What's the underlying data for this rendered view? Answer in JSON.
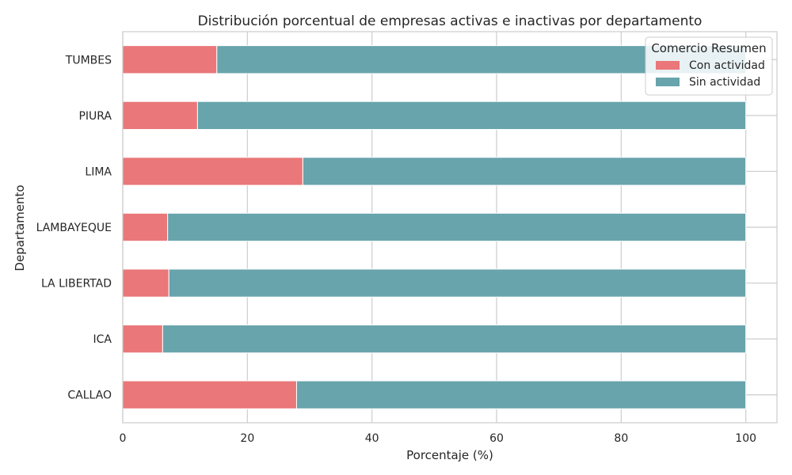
{
  "chart_data": {
    "type": "bar",
    "orientation": "horizontal",
    "stacked": true,
    "title": "Distribución porcentual de empresas activas e inactivas por departamento",
    "xlabel": "Porcentaje (%)",
    "ylabel": "Departamento",
    "xlim": [
      0,
      105
    ],
    "xticks": [
      0,
      20,
      40,
      60,
      80,
      100
    ],
    "grid": true,
    "legend": {
      "title": "Comercio Resumen",
      "placement": "top-right"
    },
    "categories": [
      "TUMBES",
      "PIURA",
      "LIMA",
      "LAMBAYEQUE",
      "LA LIBERTAD",
      "ICA",
      "CALLAO"
    ],
    "series": [
      {
        "name": "Con actividad",
        "color": "#ea7779",
        "values": [
          15.1,
          12.0,
          28.9,
          7.2,
          7.4,
          6.4,
          27.9
        ]
      },
      {
        "name": "Sin actividad",
        "color": "#68a4ac",
        "values": [
          84.9,
          88.0,
          71.1,
          92.8,
          92.6,
          93.6,
          72.1
        ]
      }
    ]
  }
}
